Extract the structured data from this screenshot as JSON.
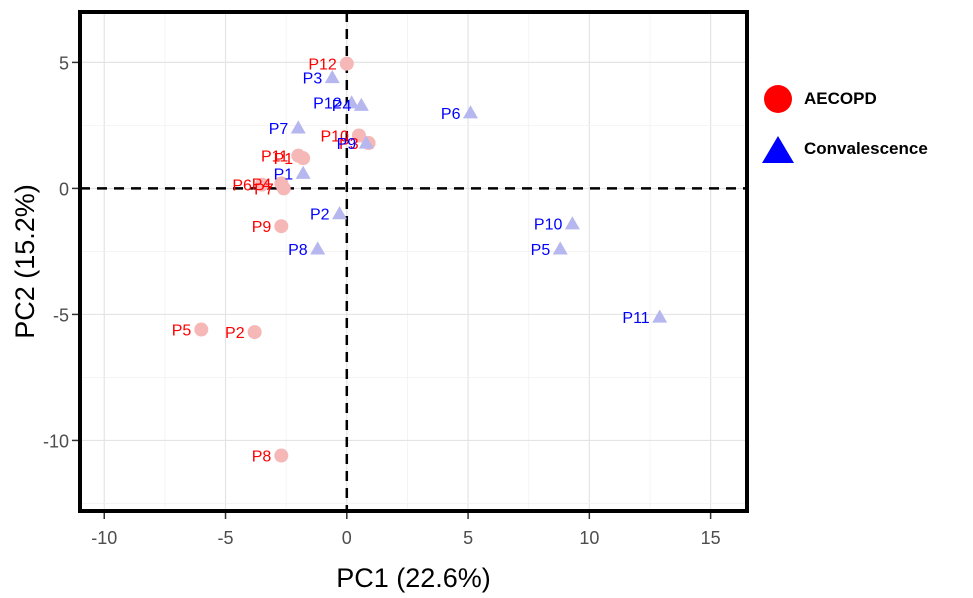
{
  "chart_data": {
    "type": "scatter",
    "xlabel": "PC1 (22.6%)",
    "ylabel": "PC2 (15.2%)",
    "xlim": [
      -11,
      16.5
    ],
    "ylim": [
      -12.8,
      7
    ],
    "xticks": [
      -10,
      -5,
      0,
      5,
      10,
      15
    ],
    "yticks": [
      5,
      0,
      -5,
      -10
    ],
    "xtick_labels": [
      "-10",
      "-5",
      "0",
      "5",
      "10",
      "15"
    ],
    "ytick_labels": [
      "5",
      "0",
      "-5",
      "-10"
    ],
    "grid": true,
    "reference_lines": {
      "x": 0,
      "y": 0,
      "style": "dashed"
    },
    "legend_position": "right",
    "series": [
      {
        "name": "AECOPD",
        "marker": "circle",
        "color": "#ff0000",
        "point_color": "#f6b7b7",
        "points": [
          {
            "label": "P1",
            "x": -1.8,
            "y": 1.2
          },
          {
            "label": "P2",
            "x": -3.8,
            "y": -5.7
          },
          {
            "label": "P3",
            "x": 0.9,
            "y": 1.8
          },
          {
            "label": "P4",
            "x": -2.7,
            "y": 0.2
          },
          {
            "label": "P5",
            "x": -6.0,
            "y": -5.6
          },
          {
            "label": "P6",
            "x": -3.5,
            "y": 0.15
          },
          {
            "label": "P7",
            "x": -2.6,
            "y": 0.0
          },
          {
            "label": "P8",
            "x": -2.7,
            "y": -10.6
          },
          {
            "label": "P9",
            "x": -2.7,
            "y": -1.5
          },
          {
            "label": "P10",
            "x": 0.5,
            "y": 2.1
          },
          {
            "label": "P11",
            "x": -2.0,
            "y": 1.3
          },
          {
            "label": "P12",
            "x": 0.0,
            "y": 4.95
          }
        ]
      },
      {
        "name": "Convalescence",
        "marker": "triangle",
        "color": "#0000ff",
        "point_color": "#b7b7ef",
        "points": [
          {
            "label": "P1",
            "x": -1.8,
            "y": 0.6
          },
          {
            "label": "P2",
            "x": -0.3,
            "y": -1.0
          },
          {
            "label": "P3",
            "x": -0.6,
            "y": 4.4
          },
          {
            "label": "P4",
            "x": 0.6,
            "y": 3.3
          },
          {
            "label": "P5",
            "x": 8.8,
            "y": -2.4
          },
          {
            "label": "P6",
            "x": 5.1,
            "y": 3.0
          },
          {
            "label": "P7",
            "x": -2.0,
            "y": 2.4
          },
          {
            "label": "P8",
            "x": -1.2,
            "y": -2.4
          },
          {
            "label": "P9",
            "x": 0.8,
            "y": 1.8
          },
          {
            "label": "P10",
            "x": 9.3,
            "y": -1.4
          },
          {
            "label": "P11",
            "x": 12.9,
            "y": -5.1
          },
          {
            "label": "P12",
            "x": 0.2,
            "y": 3.4
          }
        ]
      }
    ]
  }
}
